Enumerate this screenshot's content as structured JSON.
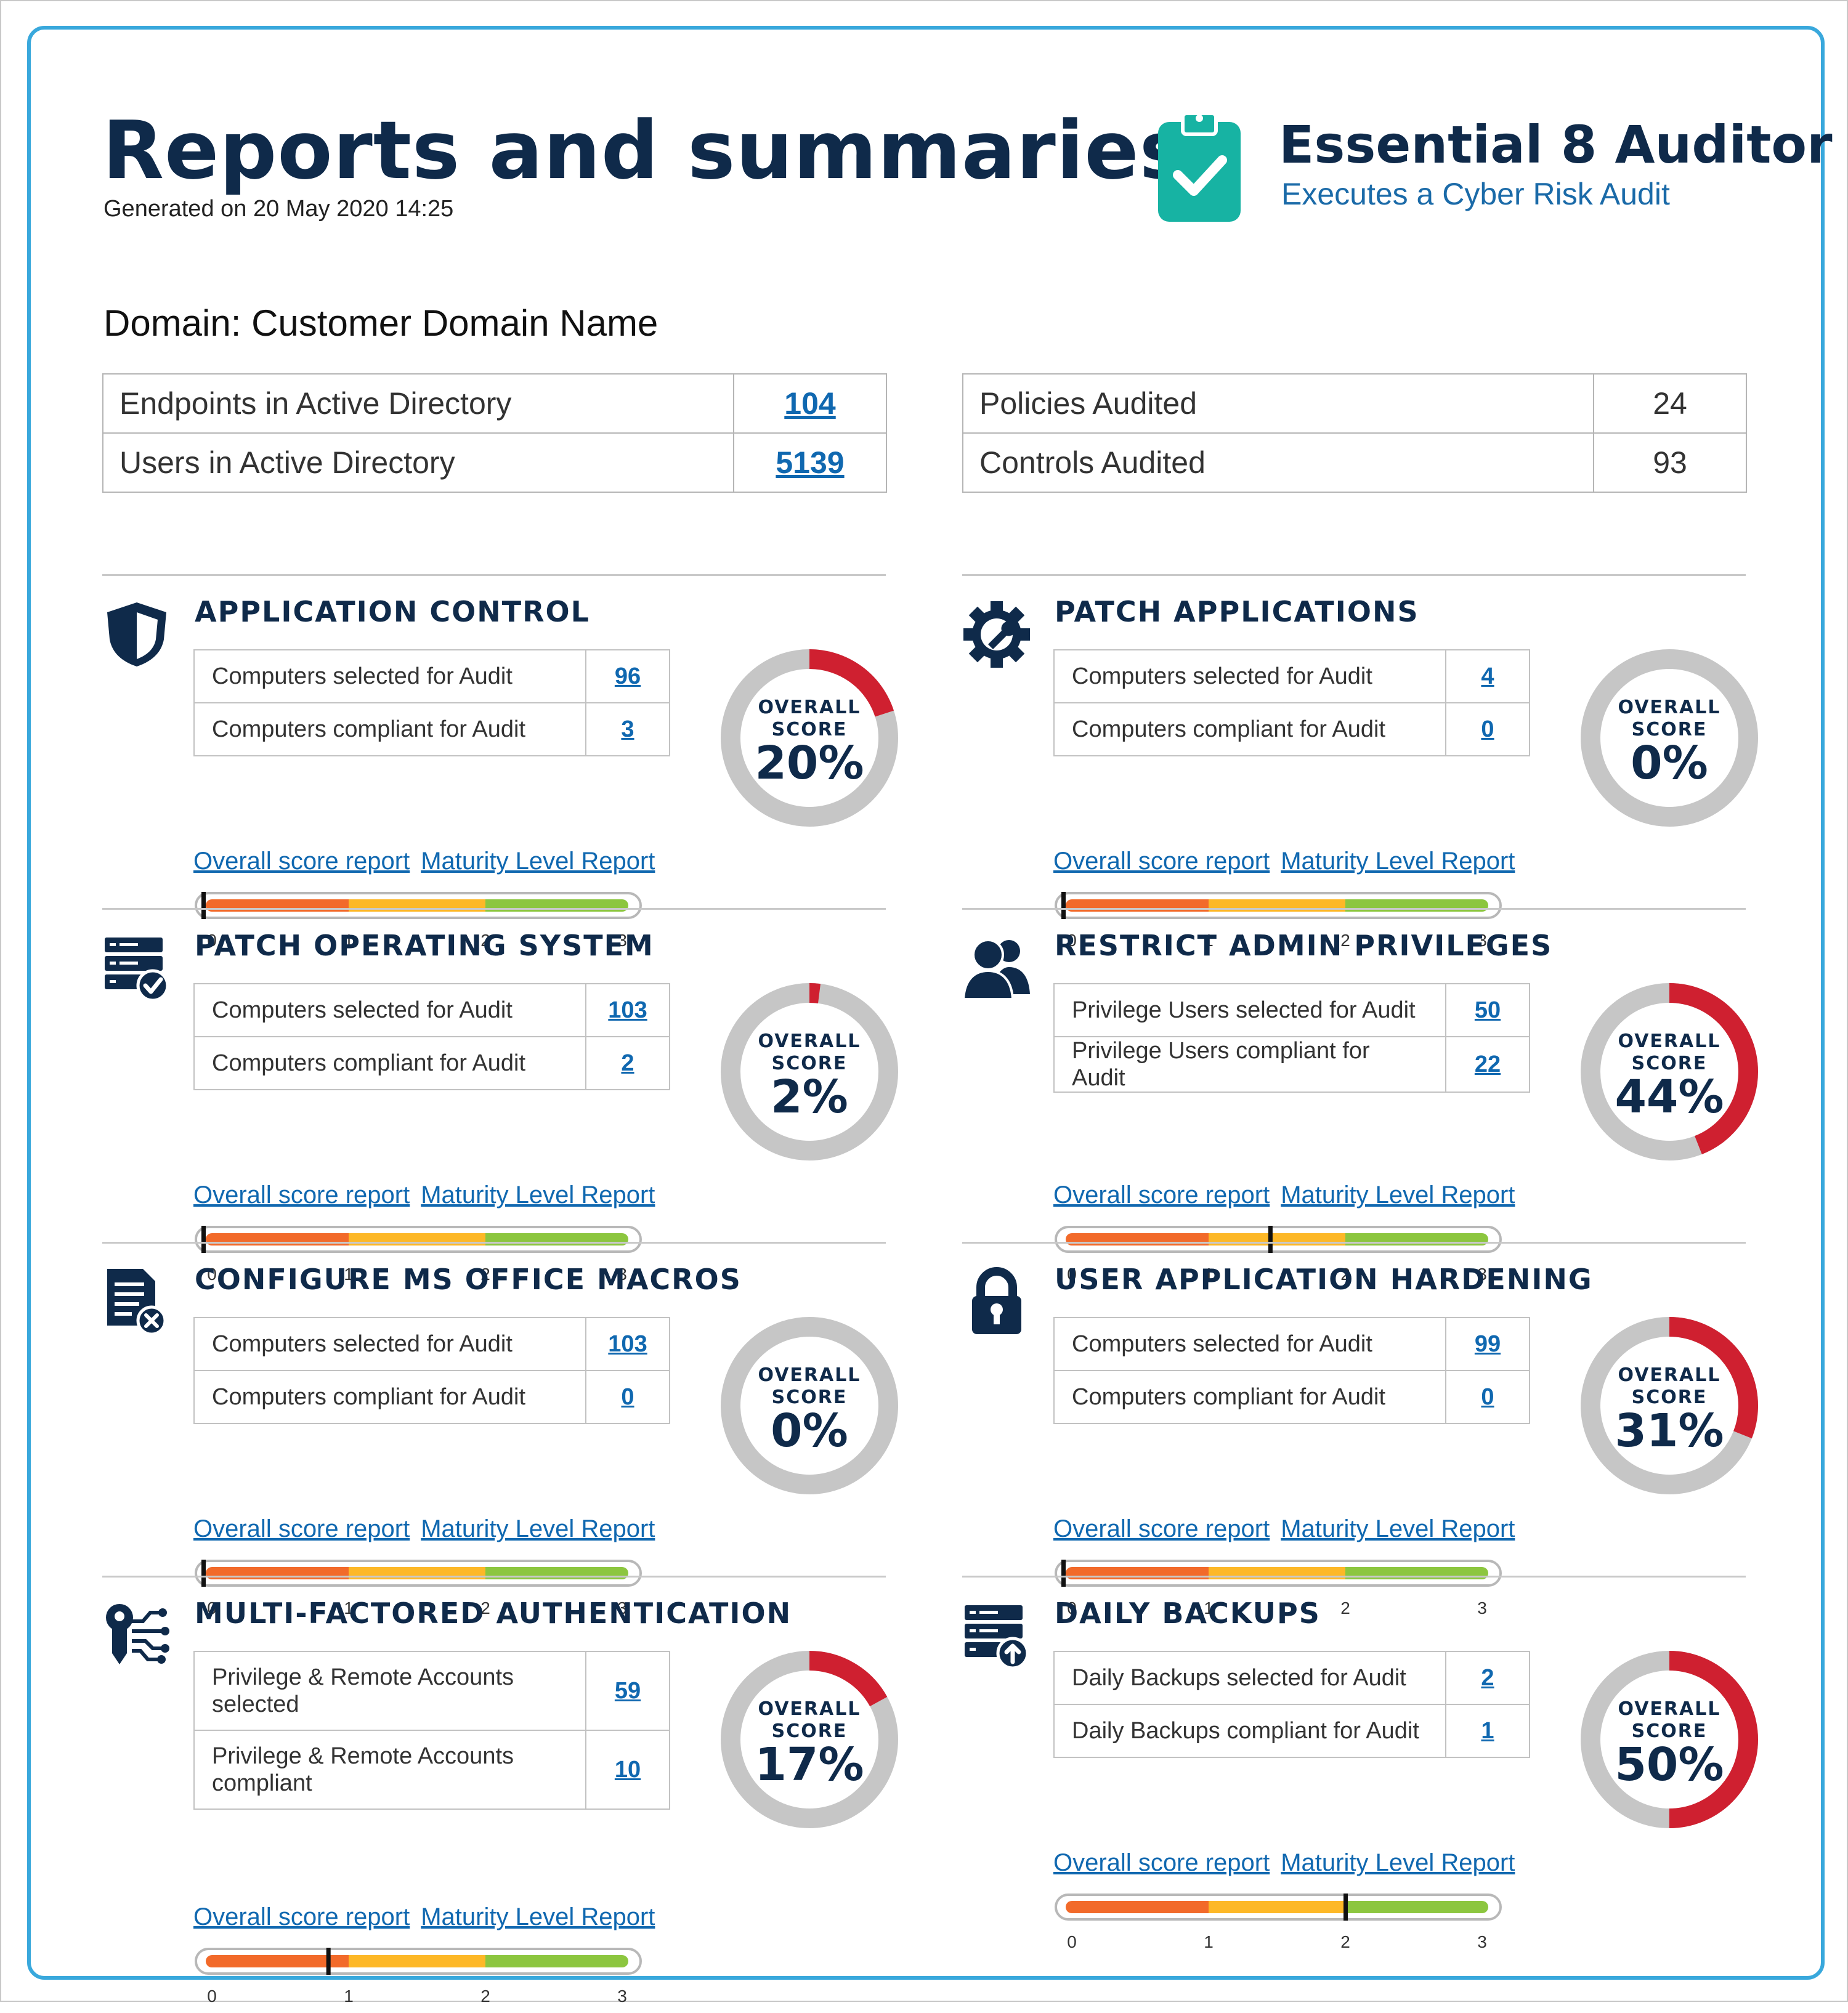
{
  "header": {
    "title": "Reports and summaries",
    "generated": "Generated on 20 May 2020 14:25",
    "brand_name": "Essential 8 Auditor",
    "brand_tagline": "Executes a Cyber Risk Audit",
    "brand_icon": "clipboard-check-icon"
  },
  "domain": "Domain: Customer Domain Name",
  "summary_left": [
    {
      "label": "Endpoints in Active Directory",
      "value": "104",
      "link": true
    },
    {
      "label": "Users in Active Directory",
      "value": "5139",
      "link": true
    }
  ],
  "summary_right": [
    {
      "label": "Policies Audited",
      "value": "24",
      "link": false
    },
    {
      "label": "Controls Audited",
      "value": "93",
      "link": false
    }
  ],
  "score_label_top": "OVERALL",
  "score_label_bottom": "SCORE",
  "link_labels": {
    "overall": "Overall score report",
    "maturity": "Maturity Level Report"
  },
  "gauge_ticks": [
    "0",
    "1",
    "2",
    "3"
  ],
  "colors": {
    "navy": "#0f2a4a",
    "score_red": "#cf2030",
    "track_gray": "#c6c6c6",
    "link_blue": "#1068b0",
    "gauge_orange": "#f26a2a",
    "gauge_yellow": "#fdb827",
    "gauge_green": "#8cc63f"
  },
  "sections": [
    {
      "id": "application-control",
      "title": "APPLICATION CONTROL",
      "icon": "shield-icon",
      "rows": [
        {
          "label": "Computers selected for Audit",
          "value": "96"
        },
        {
          "label": "Computers compliant for Audit",
          "value": "3"
        }
      ],
      "score": "20%",
      "score_pct": 20,
      "maturity": 0
    },
    {
      "id": "patch-applications",
      "title": "PATCH APPLICATIONS",
      "icon": "gear-wrench-icon",
      "rows": [
        {
          "label": "Computers selected for Audit",
          "value": "4"
        },
        {
          "label": "Computers compliant for Audit",
          "value": "0"
        }
      ],
      "score": "0%",
      "score_pct": 0,
      "maturity": 0
    },
    {
      "id": "patch-operating-system",
      "title": "PATCH OPERATING SYSTEM",
      "icon": "server-check-icon",
      "rows": [
        {
          "label": "Computers selected for Audit",
          "value": "103"
        },
        {
          "label": "Computers compliant for Audit",
          "value": "2"
        }
      ],
      "score": "2%",
      "score_pct": 2,
      "maturity": 0
    },
    {
      "id": "restrict-admin-privileges",
      "title": "RESTRICT ADMIN PRIVILEGES",
      "icon": "users-icon",
      "rows": [
        {
          "label": "Privilege Users selected for Audit",
          "value": "50"
        },
        {
          "label": "Privilege Users compliant for Audit",
          "value": "22"
        }
      ],
      "score": "44%",
      "score_pct": 44,
      "maturity": 1.45
    },
    {
      "id": "configure-ms-office-macros",
      "title": "CONFIGURE MS OFFICE MACROS",
      "icon": "document-x-icon",
      "rows": [
        {
          "label": "Computers selected for Audit",
          "value": "103"
        },
        {
          "label": "Computers compliant for Audit",
          "value": "0"
        }
      ],
      "score": "0%",
      "score_pct": 0,
      "maturity": 0
    },
    {
      "id": "user-application-hardening",
      "title": "USER APPLICATION HARDENING",
      "icon": "lock-icon",
      "rows": [
        {
          "label": "Computers selected for Audit",
          "value": "99"
        },
        {
          "label": "Computers compliant for Audit",
          "value": "0"
        }
      ],
      "score": "31%",
      "score_pct": 31,
      "maturity": 0
    },
    {
      "id": "multi-factored-authentication",
      "title": "MULTI-FACTORED AUTHENTICATION",
      "icon": "key-circuit-icon",
      "rows": [
        {
          "label": "Privilege & Remote Accounts selected",
          "value": "59"
        },
        {
          "label": "Privilege & Remote Accounts compliant",
          "value": "10"
        }
      ],
      "score": "17%",
      "score_pct": 17,
      "maturity": 0.85
    },
    {
      "id": "daily-backups",
      "title": "DAILY BACKUPS",
      "icon": "server-upload-icon",
      "rows": [
        {
          "label": "Daily Backups selected for Audit",
          "value": "2"
        },
        {
          "label": "Daily Backups compliant for Audit",
          "value": "1"
        }
      ],
      "score": "50%",
      "score_pct": 50,
      "maturity": 2.0
    }
  ]
}
